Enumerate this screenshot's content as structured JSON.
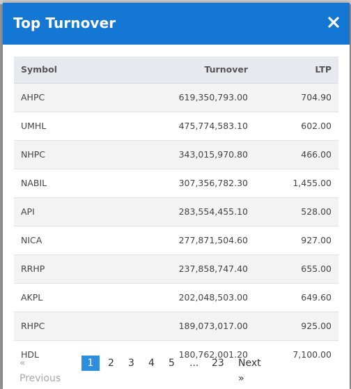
{
  "modal": {
    "title": "Top Turnover",
    "close_glyph": "×"
  },
  "table": {
    "headers": {
      "symbol": "Symbol",
      "turnover": "Turnover",
      "ltp": "LTP"
    },
    "rows": [
      {
        "symbol": "AHPC",
        "turnover": "619,350,793.00",
        "ltp": "704.90"
      },
      {
        "symbol": "UMHL",
        "turnover": "475,774,583.10",
        "ltp": "602.00"
      },
      {
        "symbol": "NHPC",
        "turnover": "343,015,970.80",
        "ltp": "466.00"
      },
      {
        "symbol": "NABIL",
        "turnover": "307,356,782.30",
        "ltp": "1,455.00"
      },
      {
        "symbol": "API",
        "turnover": "283,554,455.10",
        "ltp": "528.00"
      },
      {
        "symbol": "NICA",
        "turnover": "277,871,504.60",
        "ltp": "927.00"
      },
      {
        "symbol": "RRHP",
        "turnover": "237,858,747.40",
        "ltp": "655.00"
      },
      {
        "symbol": "AKPL",
        "turnover": "202,048,503.00",
        "ltp": "649.60"
      },
      {
        "symbol": "RHPC",
        "turnover": "189,073,017.00",
        "ltp": "925.00"
      },
      {
        "symbol": "HDL",
        "turnover": "180,762,001.20",
        "ltp": "7,100.00"
      }
    ]
  },
  "pagination": {
    "previous": "« Previous",
    "pages": [
      "1",
      "2",
      "3",
      "4",
      "5"
    ],
    "ellipsis": "...",
    "last": "23",
    "next": "Next »",
    "current": "1"
  },
  "colors": {
    "header_bg": "#1377d3",
    "active_page": "#2f8fdc"
  }
}
